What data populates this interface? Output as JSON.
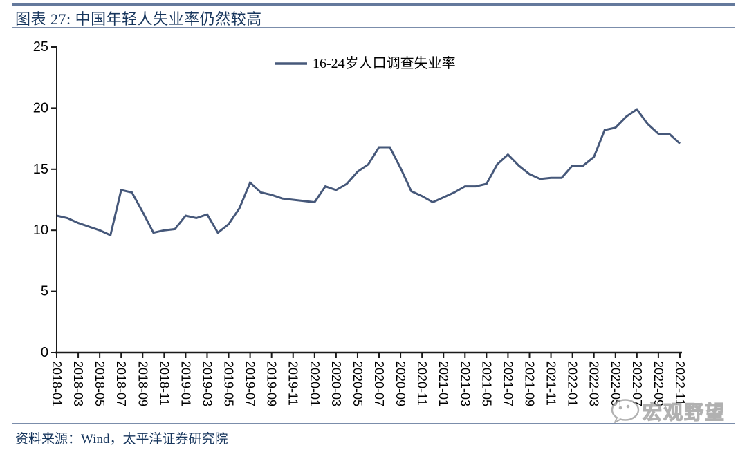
{
  "figure": {
    "title": "图表 27: 中国年轻人失业率仍然较高",
    "source": "资料来源：Wind，太平洋证券研究院",
    "watermark": "宏观野望"
  },
  "colors": {
    "line": "#46587a",
    "title_text": "#17365d",
    "axis": "#1a1a1a",
    "watermark_gray": "#9e9e9e"
  },
  "chart_data": {
    "type": "line",
    "legend_position": "top-center",
    "grid": false,
    "ylim": [
      0,
      25
    ],
    "y_ticks": [
      0,
      5,
      10,
      15,
      20,
      25
    ],
    "x": [
      "2018-01",
      "2018-02",
      "2018-03",
      "2018-04",
      "2018-05",
      "2018-06",
      "2018-07",
      "2018-08",
      "2018-09",
      "2018-10",
      "2018-11",
      "2018-12",
      "2019-01",
      "2019-02",
      "2019-03",
      "2019-04",
      "2019-05",
      "2019-06",
      "2019-07",
      "2019-08",
      "2019-09",
      "2019-10",
      "2019-11",
      "2019-12",
      "2020-01",
      "2020-02",
      "2020-03",
      "2020-04",
      "2020-05",
      "2020-06",
      "2020-07",
      "2020-08",
      "2020-09",
      "2020-10",
      "2020-11",
      "2020-12",
      "2021-01",
      "2021-02",
      "2021-03",
      "2021-04",
      "2021-05",
      "2021-06",
      "2021-07",
      "2021-08",
      "2021-09",
      "2021-10",
      "2021-11",
      "2021-12",
      "2022-01",
      "2022-02",
      "2022-03",
      "2022-04",
      "2022-05",
      "2022-06",
      "2022-07",
      "2022-08",
      "2022-09",
      "2022-10",
      "2022-11"
    ],
    "x_tick_labels": [
      "2018-01",
      "2018-03",
      "2018-05",
      "2018-07",
      "2018-09",
      "2018-11",
      "2019-01",
      "2019-03",
      "2019-05",
      "2019-07",
      "2019-09",
      "2019-11",
      "2020-01",
      "2020-03",
      "2020-05",
      "2020-07",
      "2020-09",
      "2020-11",
      "2021-01",
      "2021-03",
      "2021-05",
      "2021-07",
      "2021-09",
      "2021-11",
      "2022-01",
      "2022-03",
      "2022-05",
      "2022-07",
      "2022-09",
      "2022-11"
    ],
    "series": [
      {
        "name": "16-24岁人口调查失业率",
        "color": "#46587a",
        "values": [
          11.2,
          11.0,
          10.6,
          10.3,
          10.0,
          9.6,
          13.3,
          13.1,
          11.5,
          9.8,
          10.0,
          10.1,
          11.2,
          11.0,
          11.3,
          9.8,
          10.5,
          11.8,
          13.9,
          13.1,
          12.9,
          12.6,
          12.5,
          12.4,
          12.3,
          13.6,
          13.3,
          13.8,
          14.8,
          15.4,
          16.8,
          16.8,
          15.1,
          13.2,
          12.8,
          12.3,
          12.7,
          13.1,
          13.6,
          13.6,
          13.8,
          15.4,
          16.2,
          15.3,
          14.6,
          14.2,
          14.3,
          14.3,
          15.3,
          15.3,
          16.0,
          18.2,
          18.4,
          19.3,
          19.9,
          18.7,
          17.9,
          17.9,
          17.1
        ]
      }
    ]
  }
}
